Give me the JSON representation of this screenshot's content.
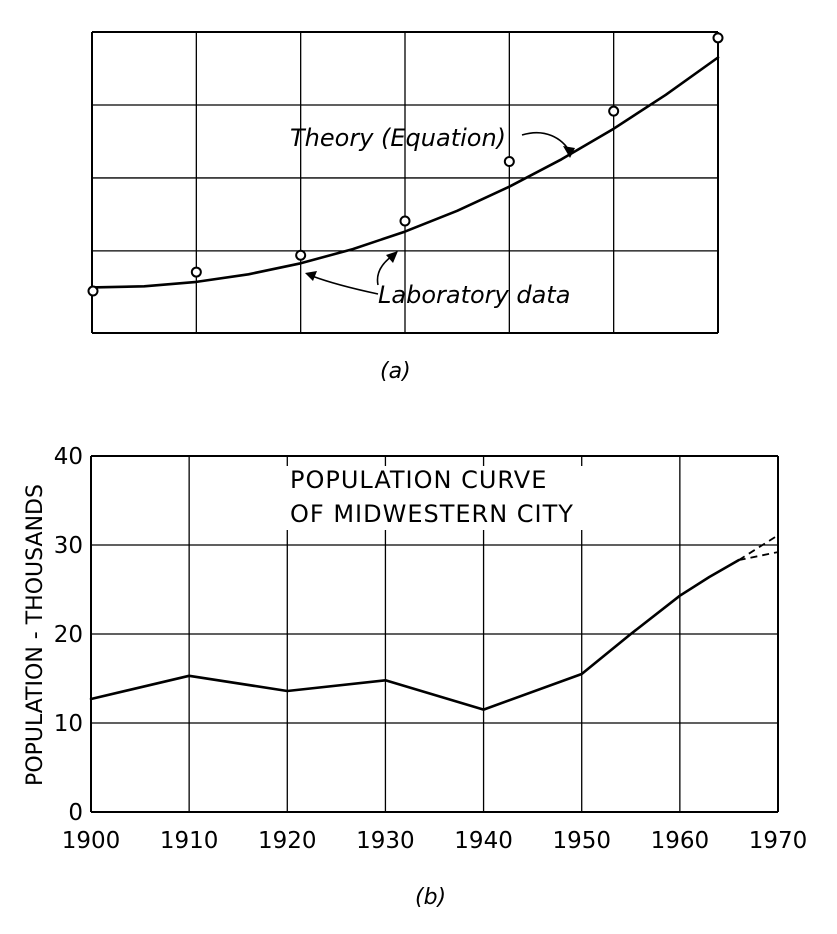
{
  "chart_data": [
    {
      "type": "scatter",
      "caption": "(a)",
      "series": [
        {
          "name": "Laboratory data",
          "x": [
            0,
            1,
            2,
            3,
            4,
            5,
            6
          ],
          "y": [
            0.4,
            0.92,
            1.38,
            2.32,
            3.95,
            5.33,
            7.34
          ]
        },
        {
          "name": "Theory (Equation)",
          "x": [
            0,
            0.5,
            1,
            1.5,
            2,
            2.5,
            3,
            3.5,
            4,
            4.5,
            5,
            5.5,
            6
          ],
          "y": [
            0.5,
            0.53,
            0.65,
            0.86,
            1.16,
            1.55,
            2.03,
            2.6,
            3.26,
            4.01,
            4.85,
            5.78,
            6.8
          ]
        }
      ],
      "xlim": [
        0,
        6
      ],
      "ylim": [
        -0.75,
        7.5
      ],
      "annotations": [
        "Theory (Equation)",
        "Laboratory data"
      ],
      "grid": true
    },
    {
      "type": "line",
      "caption": "(b)",
      "title": [
        "POPULATION CURVE",
        "OF MIDWESTERN CITY"
      ],
      "ylabel": "POPULATION - THOUSANDS",
      "xlabel": "",
      "xticks": [
        "1900",
        "1910",
        "1920",
        "1930",
        "1940",
        "1950",
        "1960",
        "1970"
      ],
      "yticks": [
        "0",
        "10",
        "20",
        "30",
        "40"
      ],
      "xlim": [
        1900,
        1970
      ],
      "ylim": [
        0,
        40
      ],
      "grid": true,
      "series": [
        {
          "x": [
            1900,
            1910,
            1920,
            1930,
            1940,
            1950,
            1955,
            1960,
            1963,
            1966
          ],
          "y": [
            12.7,
            15.3,
            13.6,
            14.8,
            11.5,
            15.5,
            20,
            24.3,
            26.4,
            28.3
          ]
        }
      ],
      "projections": [
        {
          "x": [
            1966,
            1970
          ],
          "y": [
            28.3,
            31.1
          ]
        },
        {
          "x": [
            1966,
            1970
          ],
          "y": [
            28.3,
            29.2
          ]
        }
      ]
    }
  ]
}
